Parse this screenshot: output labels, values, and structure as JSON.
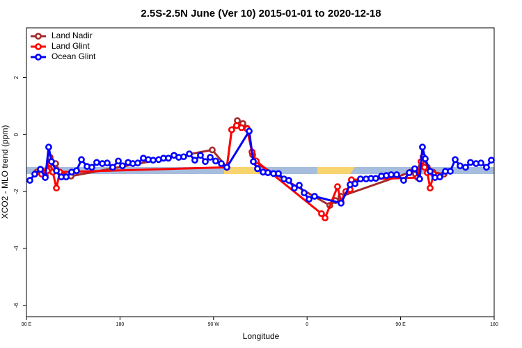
{
  "chart_data": {
    "type": "line",
    "title": "2.5S-2.5N June (Ver 10)   2015-01-01 to 2020-12-18",
    "x_label": "Longitude",
    "y_label": "XCO2 - MLO trend (ppm)",
    "xlim": [
      90,
      540
    ],
    "xticks": [
      {
        "value": 90,
        "label": "90 E"
      },
      {
        "value": 180,
        "label": "180"
      },
      {
        "value": 270,
        "label": "90 W"
      },
      {
        "value": 360,
        "label": "0"
      },
      {
        "value": 450,
        "label": "90 E"
      },
      {
        "value": 540,
        "label": "180"
      }
    ],
    "ylim": [
      -6.4,
      3.75
    ],
    "yticks": [
      -6,
      -4,
      -2,
      0,
      2
    ],
    "grid": false,
    "legend": "top-left",
    "series": [
      {
        "name": "Land Nadir",
        "color": "#a52a2a",
        "x": [
          100,
          104.7,
          108.1,
          112.8,
          118.1,
          122.1,
          132.9,
          268.8,
          282.8,
          287.5,
          292.9,
          298.2,
          302.3,
          307.6,
          311.6,
          381.9,
          387.3,
          392.7,
          459.6,
          464.3,
          471.6,
          475.7,
          481.1,
          491.8
        ],
        "values": [
          -1.32,
          -1.27,
          -1.44,
          -0.8,
          -1.02,
          -1.32,
          -1.46,
          -0.54,
          -1.15,
          0.17,
          0.49,
          0.39,
          0.22,
          -0.71,
          -1.02,
          -2.49,
          -2.32,
          -2.17,
          -1.32,
          -1.39,
          -0.78,
          -1.15,
          -1.32,
          -1.39
        ]
      },
      {
        "name": "Land Glint",
        "color": "#ff0000",
        "x": [
          104.7,
          110,
          112.8,
          115.4,
          118.8,
          122.1,
          282.8,
          287.5,
          292.2,
          296.9,
          302.3,
          307,
          311,
          373.9,
          377.3,
          389.3,
          392.7,
          397.3,
          401.4,
          402.7,
          466.3,
          469.7,
          473,
          475.7,
          478.4,
          481.7
        ],
        "values": [
          -1.39,
          -1.27,
          -1.02,
          -1.32,
          -1.88,
          -1.32,
          -1.15,
          0.17,
          0.32,
          0.24,
          0.2,
          -0.61,
          -0.93,
          -2.78,
          -2.93,
          -1.83,
          -2.37,
          -2.0,
          -1.93,
          -1.59,
          -1.51,
          -0.95,
          -1.15,
          -1.34,
          -1.88,
          -1.39
        ]
      },
      {
        "name": "Ocean Glint",
        "color": "#0000ff",
        "x": [
          93.3,
          98,
          103.4,
          108.1,
          111.4,
          114.1,
          118.8,
          123.5,
          128.2,
          133.5,
          138.2,
          142.9,
          148.3,
          152.9,
          157.6,
          163,
          167.7,
          173,
          178.4,
          182.4,
          187.8,
          192.4,
          197.1,
          202.5,
          207.2,
          211.9,
          217.2,
          221.9,
          226.6,
          232,
          236.6,
          241.3,
          246.7,
          252,
          257.4,
          262.1,
          266.8,
          272.1,
          277.5,
          282.8,
          304.3,
          308.3,
          312.3,
          317.7,
          322.3,
          327.7,
          332.4,
          337.8,
          342.4,
          347.8,
          352.5,
          357.2,
          361.9,
          367.2,
          392.7,
          401.4,
          406.1,
          411.4,
          416.8,
          421.5,
          426.1,
          431.5,
          436.2,
          440.9,
          446.2,
          452.9,
          458.3,
          463.6,
          468.3,
          471,
          473.7,
          478.4,
          483.1,
          487.7,
          493.1,
          497.8,
          502.5,
          507.2,
          512.5,
          517.2,
          522.6,
          527.3,
          532.6,
          537.3
        ],
        "values": [
          -1.61,
          -1.39,
          -1.22,
          -1.51,
          -0.44,
          -0.95,
          -1.27,
          -1.49,
          -1.49,
          -1.32,
          -1.27,
          -0.88,
          -1.12,
          -1.15,
          -0.98,
          -1.02,
          -1.0,
          -1.15,
          -0.93,
          -1.1,
          -0.98,
          -1.02,
          -1.0,
          -0.83,
          -0.88,
          -0.9,
          -0.88,
          -0.83,
          -0.83,
          -0.73,
          -0.8,
          -0.78,
          -0.68,
          -0.9,
          -0.73,
          -0.95,
          -0.8,
          -0.93,
          -1.02,
          -1.15,
          0.12,
          -0.95,
          -1.2,
          -1.32,
          -1.34,
          -1.37,
          -1.37,
          -1.56,
          -1.61,
          -1.88,
          -1.78,
          -2.05,
          -2.27,
          -2.17,
          -2.41,
          -1.76,
          -1.73,
          -1.56,
          -1.56,
          -1.54,
          -1.54,
          -1.46,
          -1.44,
          -1.41,
          -1.41,
          -1.61,
          -1.34,
          -1.2,
          -1.56,
          -0.44,
          -0.85,
          -1.29,
          -1.51,
          -1.49,
          -1.29,
          -1.29,
          -0.88,
          -1.1,
          -1.15,
          -0.98,
          -1.02,
          -1.0,
          -1.15,
          -0.9
        ]
      }
    ]
  }
}
